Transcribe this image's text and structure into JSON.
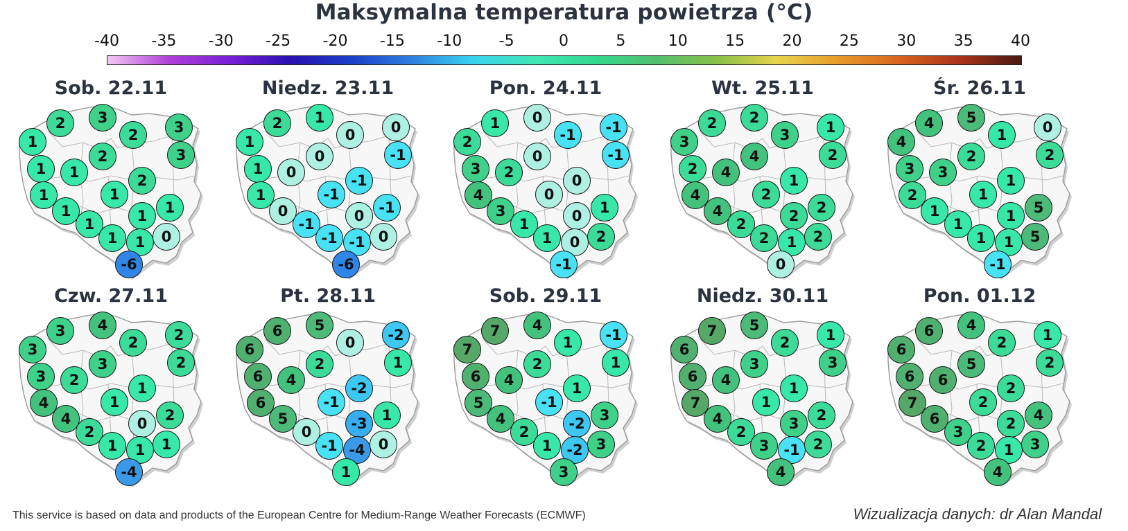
{
  "title": "Maksymalna temperatura powietrza (°C)",
  "scale": {
    "ticks": [
      "-40",
      "-35",
      "-30",
      "-25",
      "-20",
      "-15",
      "-10",
      "-5",
      "0",
      "5",
      "10",
      "15",
      "20",
      "25",
      "30",
      "35",
      "40"
    ],
    "min": -40,
    "max": 40,
    "colors": [
      "#f4c8f2",
      "#b040d8",
      "#7a1fd6",
      "#2a10b0",
      "#1d3fc8",
      "#2f7fe0",
      "#38d4ef",
      "#3fe7b5",
      "#33d98e",
      "#52c070",
      "#88c04a",
      "#e8d44a",
      "#e89a2a",
      "#d8641f",
      "#a8331a",
      "#4a1a12"
    ]
  },
  "days": [
    {
      "title": "Sob. 22.11",
      "temps": [
        1,
        2,
        3,
        2,
        3,
        3,
        2,
        1,
        1,
        1,
        2,
        1,
        1,
        1,
        1,
        1,
        1,
        1,
        0,
        -6
      ]
    },
    {
      "title": "Niedz. 23.11",
      "temps": [
        1,
        2,
        1,
        0,
        0,
        -1,
        0,
        1,
        0,
        -1,
        -1,
        1,
        0,
        0,
        -1,
        -1,
        -1,
        -1,
        0,
        -6
      ]
    },
    {
      "title": "Pon. 24.11",
      "temps": [
        2,
        1,
        0,
        -1,
        -1,
        -1,
        0,
        3,
        2,
        0,
        0,
        4,
        3,
        0,
        1,
        1,
        1,
        0,
        2,
        -1
      ]
    },
    {
      "title": "Wt. 25.11",
      "temps": [
        3,
        2,
        2,
        3,
        1,
        2,
        4,
        2,
        4,
        2,
        1,
        4,
        4,
        2,
        2,
        2,
        2,
        1,
        2,
        0
      ]
    },
    {
      "title": "Śr. 26.11",
      "temps": [
        4,
        4,
        5,
        1,
        0,
        2,
        2,
        3,
        3,
        1,
        1,
        2,
        1,
        1,
        5,
        1,
        1,
        1,
        5,
        -1
      ]
    },
    {
      "title": "Czw. 27.11",
      "temps": [
        3,
        3,
        4,
        2,
        2,
        2,
        3,
        3,
        2,
        1,
        1,
        4,
        4,
        0,
        2,
        2,
        1,
        1,
        1,
        -4
      ]
    },
    {
      "title": "Pt. 28.11",
      "temps": [
        6,
        6,
        5,
        0,
        -2,
        1,
        2,
        6,
        4,
        -1,
        -2,
        6,
        5,
        -3,
        1,
        0,
        -1,
        -4,
        0,
        1
      ]
    },
    {
      "title": "Sob. 29.11",
      "temps": [
        7,
        7,
        4,
        1,
        -1,
        1,
        2,
        6,
        4,
        -1,
        1,
        5,
        4,
        -2,
        3,
        2,
        1,
        -2,
        3,
        3
      ]
    },
    {
      "title": "Niedz. 30.11",
      "temps": [
        6,
        7,
        5,
        2,
        1,
        3,
        3,
        6,
        4,
        1,
        1,
        7,
        4,
        3,
        2,
        2,
        3,
        -1,
        2,
        4
      ]
    },
    {
      "title": "Pon. 01.12",
      "temps": [
        6,
        6,
        4,
        2,
        1,
        2,
        5,
        6,
        6,
        2,
        2,
        7,
        6,
        2,
        4,
        3,
        2,
        1,
        3,
        4
      ]
    }
  ],
  "footer": {
    "left": "This service is based on data and products of the European Centre for Medium-Range Weather Forecasts (ECMWF)",
    "right": "Wizualizacja danych: dr Alan Mandal"
  }
}
